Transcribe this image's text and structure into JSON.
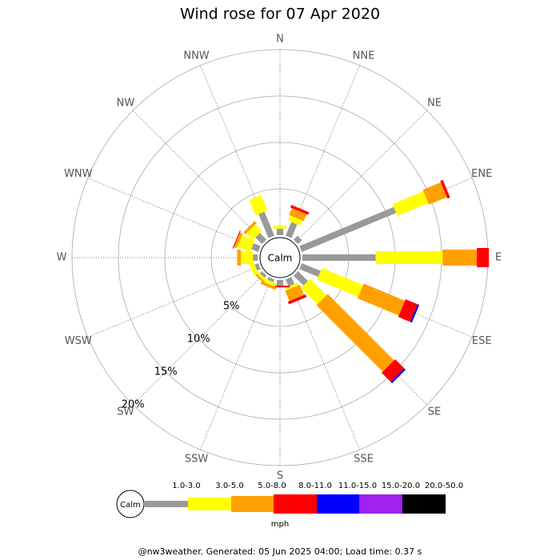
{
  "chart_data": {
    "type": "windrose",
    "title": "Wind rose for 07 Apr 2020",
    "directions": [
      "N",
      "NNE",
      "NE",
      "ENE",
      "E",
      "ESE",
      "SE",
      "SSE",
      "S",
      "SSW",
      "SW",
      "WSW",
      "W",
      "WNW",
      "NW",
      "NNW"
    ],
    "calm_label": "Calm",
    "rlim": [
      0,
      20
    ],
    "rticks": [
      {
        "value": 5,
        "label": "5%"
      },
      {
        "value": 10,
        "label": "10%"
      },
      {
        "value": 15,
        "label": "15%"
      },
      {
        "value": 20,
        "label": "20%"
      }
    ],
    "unit": "mph",
    "series": [
      {
        "name": "1.0-3.0",
        "color": "#999999",
        "values": [
          0.7,
          1.6,
          0.6,
          11,
          7.9,
          2.2,
          1.5,
          0.8,
          0.6,
          0.3,
          0.3,
          0.4,
          0.5,
          0.8,
          1.0,
          2.8
        ]
      },
      {
        "name": "3.0-5.0",
        "color": "#ffff00",
        "values": [
          0.3,
          0.6,
          0,
          3.6,
          7.2,
          4.8,
          2.5,
          0.3,
          0,
          0.4,
          0.3,
          0.5,
          1.3,
          1.5,
          1.0,
          1.8
        ]
      },
      {
        "name": "5.0-8.0",
        "color": "#ffa000",
        "values": [
          0,
          0.8,
          0,
          2.1,
          3.7,
          4.8,
          10.1,
          1.2,
          0,
          0.3,
          0.2,
          0,
          0.4,
          0.3,
          0.3,
          0
        ]
      },
      {
        "name": "8.0-11.0",
        "color": "#ff0000",
        "values": [
          0,
          0.3,
          0,
          0.3,
          1.3,
          1.4,
          1.4,
          0.3,
          0.2,
          0,
          0,
          0,
          0,
          0.1,
          0,
          0
        ]
      },
      {
        "name": "11.0-15.0",
        "color": "#0000ff",
        "values": [
          0,
          0,
          0,
          0,
          0,
          0.2,
          0.2,
          0,
          0,
          0,
          0,
          0,
          0,
          0,
          0,
          0
        ]
      },
      {
        "name": "15.0-20.0",
        "color": "#a020f0",
        "values": [
          0,
          0,
          0,
          0,
          0,
          0,
          0,
          0,
          0,
          0,
          0,
          0,
          0,
          0,
          0,
          0
        ]
      },
      {
        "name": "20.0-50.0",
        "color": "#000000",
        "values": [
          0,
          0,
          0,
          0,
          0,
          0,
          0,
          0,
          0,
          0,
          0,
          0,
          0,
          0,
          0,
          0
        ]
      }
    ],
    "footer": "@nw3weather. Generated: 05 Jun 2025 04:00; Load time: 0.37 s"
  }
}
